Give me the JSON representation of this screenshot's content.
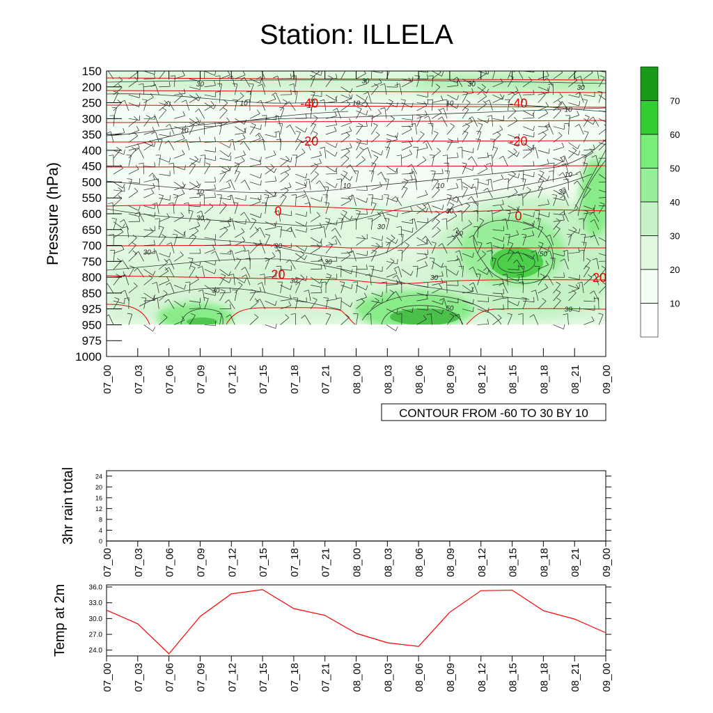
{
  "title": "Station: ILLELA",
  "chart_data": [
    {
      "id": "main",
      "type": "contour",
      "ylabel": "Pressure (hPa)",
      "xlabel": "",
      "pressure_levels": [
        150,
        200,
        250,
        300,
        350,
        400,
        450,
        500,
        550,
        600,
        650,
        700,
        750,
        800,
        850,
        925,
        950,
        975,
        1000
      ],
      "time_labels": [
        "07_00",
        "07_03",
        "07_06",
        "07_09",
        "07_12",
        "07_15",
        "07_18",
        "07_21",
        "08_00",
        "08_03",
        "08_06",
        "08_09",
        "08_12",
        "08_15",
        "08_18",
        "08_21",
        "09_00"
      ],
      "footer": "CONTOUR FROM -60 TO 30 BY 10",
      "legend": {
        "labels": [
          "10",
          "20",
          "30",
          "40",
          "50",
          "60",
          "70"
        ],
        "colors": [
          "#ffffff",
          "#f4fdf4",
          "#e0f8e0",
          "#c7f2c7",
          "#99ee99",
          "#77ee77",
          "#33cc33",
          "#1a991a"
        ]
      },
      "temperature_contour_labels": [
        {
          "text": "-40",
          "t": 6.5,
          "p": 250
        },
        {
          "text": "-40",
          "t": 13.2,
          "p": 250
        },
        {
          "text": "-20",
          "t": 6.5,
          "p": 370
        },
        {
          "text": "-20",
          "t": 13.2,
          "p": 370
        },
        {
          "text": "0",
          "t": 5.5,
          "p": 590
        },
        {
          "text": "0",
          "t": 13.2,
          "p": 605
        },
        {
          "text": "20",
          "t": 5.5,
          "p": 790
        },
        {
          "text": "20",
          "t": 15.8,
          "p": 800
        }
      ],
      "humidity_contour_labels": [
        {
          "text": "30",
          "t": 3.0,
          "p": 190
        },
        {
          "text": "30",
          "t": 8.3,
          "p": 180
        },
        {
          "text": "30",
          "t": 11.7,
          "p": 190
        },
        {
          "text": "30",
          "t": 15.2,
          "p": 200
        },
        {
          "text": "10",
          "t": 4.4,
          "p": 250
        },
        {
          "text": "10",
          "t": 8.0,
          "p": 250
        },
        {
          "text": "10",
          "t": 11.0,
          "p": 250
        },
        {
          "text": "10",
          "t": 14.8,
          "p": 270
        },
        {
          "text": "10",
          "t": 2.5,
          "p": 335
        },
        {
          "text": "30",
          "t": 16.2,
          "p": 420
        },
        {
          "text": "10",
          "t": 14.8,
          "p": 475
        },
        {
          "text": "10",
          "t": 3.0,
          "p": 530
        },
        {
          "text": "10",
          "t": 7.7,
          "p": 510
        },
        {
          "text": "10",
          "t": 10.7,
          "p": 510
        },
        {
          "text": "30",
          "t": 14.6,
          "p": 530
        },
        {
          "text": "30",
          "t": 11.0,
          "p": 590
        },
        {
          "text": "30",
          "t": 3.0,
          "p": 612
        },
        {
          "text": "30",
          "t": 8.8,
          "p": 640
        },
        {
          "text": "50",
          "t": 11.3,
          "p": 660
        },
        {
          "text": "30",
          "t": 5.5,
          "p": 700
        },
        {
          "text": "30",
          "t": 1.3,
          "p": 720
        },
        {
          "text": "30",
          "t": 7.1,
          "p": 750
        },
        {
          "text": "50",
          "t": 14.0,
          "p": 725
        },
        {
          "text": "30",
          "t": 6.0,
          "p": 810
        },
        {
          "text": "30",
          "t": 10.5,
          "p": 800
        },
        {
          "text": "30",
          "t": 3.5,
          "p": 840
        },
        {
          "text": "50",
          "t": 11.0,
          "p": 920
        },
        {
          "text": "30",
          "t": 14.8,
          "p": 925
        }
      ]
    },
    {
      "id": "rain",
      "type": "line",
      "ylabel": "3hr rain total",
      "x": [
        "07_00",
        "07_03",
        "07_06",
        "07_09",
        "07_12",
        "07_15",
        "07_18",
        "07_21",
        "08_00",
        "08_03",
        "08_06",
        "08_09",
        "08_12",
        "08_15",
        "08_18",
        "08_21",
        "09_00"
      ],
      "y_ticks": [
        "0",
        "4",
        "8",
        "12",
        "16",
        "20",
        "24"
      ],
      "ylim": [
        0,
        26
      ],
      "values": [
        0,
        0,
        0,
        0,
        0,
        0,
        0,
        0,
        0,
        0,
        0,
        0,
        0,
        0,
        0,
        0,
        0
      ],
      "color": "#000000"
    },
    {
      "id": "temp",
      "type": "line",
      "ylabel": "Temp at 2m",
      "x": [
        "07_00",
        "07_03",
        "07_06",
        "07_09",
        "07_12",
        "07_15",
        "07_18",
        "07_21",
        "08_00",
        "08_03",
        "08_06",
        "08_09",
        "08_12",
        "08_15",
        "08_18",
        "08_21",
        "09_00"
      ],
      "y_ticks": [
        "24.0",
        "27.0",
        "30.0",
        "33.0",
        "36.0"
      ],
      "ylim": [
        22.9,
        36.4
      ],
      "values": [
        31.6,
        29.0,
        23.3,
        30.4,
        34.7,
        35.5,
        31.9,
        30.6,
        27.2,
        25.4,
        24.7,
        31.2,
        35.3,
        35.4,
        31.5,
        29.9,
        27.3
      ],
      "color": "#ff0000"
    }
  ]
}
